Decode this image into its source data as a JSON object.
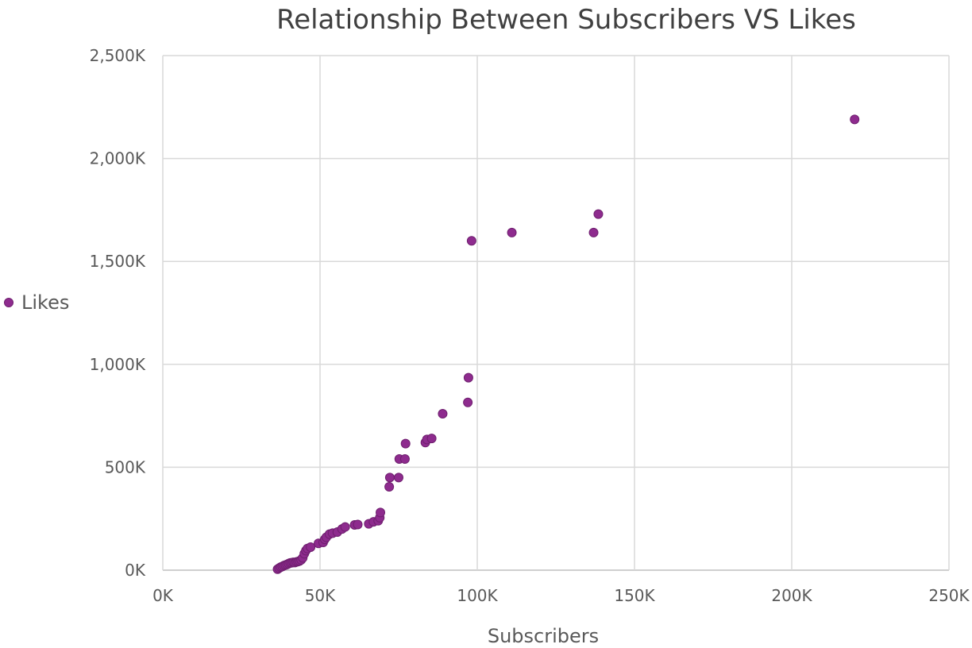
{
  "chart_data": {
    "type": "scatter",
    "title": "Relationship Between Subscribers VS Likes",
    "xlabel": "Subscribers",
    "ylabel": "",
    "xlim": [
      0,
      250000
    ],
    "ylim": [
      0,
      2500000
    ],
    "x_ticks": [
      "0K",
      "50K",
      "100K",
      "150K",
      "200K",
      "250K"
    ],
    "y_ticks": [
      "0K",
      "500K",
      "1,000K",
      "1,500K",
      "2,000K",
      "2,500K"
    ],
    "grid": true,
    "legend_position": "left",
    "series": [
      {
        "name": "Likes",
        "color": "#8e2b8e",
        "points": [
          [
            36500,
            5000
          ],
          [
            37000,
            10000
          ],
          [
            37500,
            15000
          ],
          [
            38000,
            18000
          ],
          [
            38500,
            22000
          ],
          [
            39000,
            25000
          ],
          [
            39500,
            28000
          ],
          [
            40000,
            32000
          ],
          [
            40500,
            35000
          ],
          [
            41000,
            36000
          ],
          [
            41500,
            38000
          ],
          [
            42000,
            37000
          ],
          [
            42500,
            40000
          ],
          [
            43000,
            42000
          ],
          [
            43500,
            45000
          ],
          [
            44000,
            50000
          ],
          [
            44500,
            60000
          ],
          [
            45000,
            80000
          ],
          [
            45500,
            95000
          ],
          [
            46000,
            105000
          ],
          [
            47000,
            112000
          ],
          [
            49500,
            130000
          ],
          [
            51000,
            135000
          ],
          [
            51500,
            150000
          ],
          [
            52000,
            160000
          ],
          [
            53000,
            175000
          ],
          [
            54000,
            180000
          ],
          [
            55500,
            185000
          ],
          [
            57000,
            200000
          ],
          [
            58000,
            210000
          ],
          [
            61000,
            220000
          ],
          [
            62000,
            222000
          ],
          [
            65500,
            225000
          ],
          [
            67000,
            235000
          ],
          [
            68500,
            240000
          ],
          [
            69000,
            255000
          ],
          [
            69200,
            280000
          ],
          [
            72000,
            405000
          ],
          [
            72200,
            450000
          ],
          [
            75000,
            450000
          ],
          [
            75200,
            540000
          ],
          [
            77000,
            540000
          ],
          [
            77200,
            615000
          ],
          [
            83500,
            620000
          ],
          [
            84000,
            635000
          ],
          [
            85500,
            640000
          ],
          [
            89000,
            760000
          ],
          [
            97000,
            815000
          ],
          [
            97200,
            935000
          ],
          [
            98200,
            1600000
          ],
          [
            111000,
            1640000
          ],
          [
            137000,
            1640000
          ],
          [
            138500,
            1730000
          ],
          [
            220000,
            2190000
          ]
        ]
      }
    ]
  }
}
